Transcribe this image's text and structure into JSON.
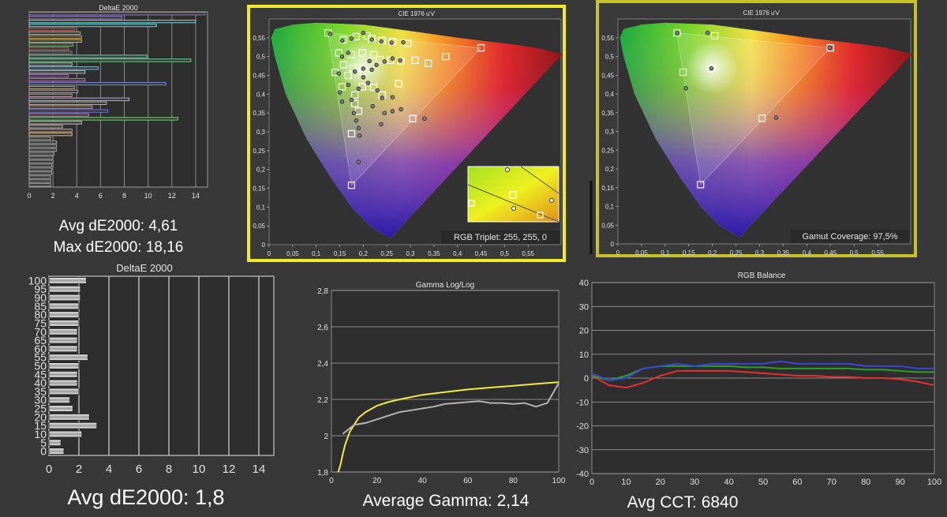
{
  "chart_data": [
    {
      "id": "deltae-top",
      "type": "bar",
      "orientation": "horizontal",
      "title": "DeltaE 2000",
      "xlim": [
        0,
        15
      ],
      "x_ticks": [
        "0",
        "2",
        "4",
        "6",
        "8",
        "10",
        "12",
        "14"
      ],
      "values": [
        14.8,
        7.8,
        14.0,
        10.7,
        3.8,
        4.3,
        4.4,
        4.4,
        3.7,
        3.3,
        3.6,
        9.9,
        13.6,
        3.6,
        5.8,
        4.7,
        3.3,
        4.7,
        11.5,
        3.8,
        4.1,
        3.6,
        8.4,
        6.5,
        5.3,
        6.6,
        5.0,
        12.5,
        4.4,
        2.8,
        3.6,
        3.6,
        1.8,
        2.3,
        2.3,
        2.3,
        2.1,
        2.0,
        2.0,
        1.9,
        1.9,
        1.9,
        1.8,
        1.8,
        1.8
      ],
      "colors": [
        "#9a7fc8",
        "#9a7fc8",
        "#7ae8e8",
        "#7fe0e0",
        "#d06060",
        "#b8b890",
        "#d0a050",
        "#d0d070",
        "#80c070",
        "#c07070",
        "#8a8a8a",
        "#80e0c0",
        "#70e0a0",
        "#c8c8c8",
        "#88c8e0",
        "#c8c8c8",
        "#a878c8",
        "#c878c8",
        "#7890e0",
        "#c8b080",
        "#a8a8a8",
        "#c8a0a0",
        "#b8b8e8",
        "#c0c0c0",
        "#e0a080",
        "#7070e0",
        "#e080c0",
        "#80e080",
        "#d0d0d0",
        "#d0b0b0",
        "#d8a8a8",
        "#e0c890",
        "#a8a8a8",
        "#a8a8a8",
        "#a8a8a8",
        "#a8a8a8",
        "#a8a8a8",
        "#a8a8a8",
        "#a8a8a8",
        "#a8a8a8",
        "#a8a8a8",
        "#a8a8a8",
        "#a8a8a8",
        "#a8a8a8",
        "#a8a8a8"
      ],
      "caption_avg": "Avg dE2000: 4,61",
      "caption_max": "Max dE2000: 18,16"
    },
    {
      "id": "cie-1",
      "type": "scatter",
      "title": "CIE 1976 u'v'",
      "xlim": [
        0,
        0.62
      ],
      "ylim": [
        0,
        0.6
      ],
      "x_ticks": [
        "0",
        "0,05",
        "0,1",
        "0,15",
        "0,2",
        "0,25",
        "0,3",
        "0,35",
        "0,4",
        "0,45",
        "0,5",
        "0,55"
      ],
      "y_ticks": [
        "0",
        "0,05",
        "0,1",
        "0,15",
        "0,2",
        "0,25",
        "0,3",
        "0,35",
        "0,4",
        "0,45",
        "0,5",
        "0,55"
      ],
      "gamut_triangle": [
        [
          0.45,
          0.523
        ],
        [
          0.125,
          0.563
        ],
        [
          0.175,
          0.158
        ]
      ],
      "targets": [
        [
          0.125,
          0.563
        ],
        [
          0.158,
          0.545
        ],
        [
          0.185,
          0.553
        ],
        [
          0.208,
          0.555
        ],
        [
          0.218,
          0.548
        ],
        [
          0.24,
          0.543
        ],
        [
          0.262,
          0.54
        ],
        [
          0.295,
          0.535
        ],
        [
          0.148,
          0.51
        ],
        [
          0.175,
          0.505
        ],
        [
          0.198,
          0.51
        ],
        [
          0.222,
          0.505
        ],
        [
          0.235,
          0.492
        ],
        [
          0.258,
          0.49
        ],
        [
          0.28,
          0.488
        ],
        [
          0.31,
          0.49
        ],
        [
          0.338,
          0.482
        ],
        [
          0.375,
          0.5
        ],
        [
          0.45,
          0.523
        ],
        [
          0.158,
          0.478
        ],
        [
          0.178,
          0.468
        ],
        [
          0.198,
          0.47
        ],
        [
          0.14,
          0.458
        ],
        [
          0.168,
          0.45
        ],
        [
          0.155,
          0.42
        ],
        [
          0.198,
          0.42
        ],
        [
          0.182,
          0.398
        ],
        [
          0.222,
          0.418
        ],
        [
          0.24,
          0.398
        ],
        [
          0.275,
          0.428
        ],
        [
          0.182,
          0.375
        ],
        [
          0.19,
          0.355
        ],
        [
          0.175,
          0.295
        ],
        [
          0.305,
          0.335
        ],
        [
          0.175,
          0.158
        ]
      ],
      "measured": [
        [
          0.13,
          0.56
        ],
        [
          0.155,
          0.542
        ],
        [
          0.175,
          0.548
        ],
        [
          0.2,
          0.563
        ],
        [
          0.218,
          0.545
        ],
        [
          0.238,
          0.54
        ],
        [
          0.26,
          0.537
        ],
        [
          0.285,
          0.538
        ],
        [
          0.155,
          0.5
        ],
        [
          0.168,
          0.51
        ],
        [
          0.2,
          0.468
        ],
        [
          0.213,
          0.488
        ],
        [
          0.228,
          0.478
        ],
        [
          0.245,
          0.487
        ],
        [
          0.262,
          0.495
        ],
        [
          0.278,
          0.49
        ],
        [
          0.148,
          0.455
        ],
        [
          0.182,
          0.46
        ],
        [
          0.2,
          0.445
        ],
        [
          0.168,
          0.425
        ],
        [
          0.21,
          0.43
        ],
        [
          0.15,
          0.405
        ],
        [
          0.19,
          0.415
        ],
        [
          0.23,
          0.41
        ],
        [
          0.24,
          0.39
        ],
        [
          0.262,
          0.392
        ],
        [
          0.22,
          0.368
        ],
        [
          0.245,
          0.35
        ],
        [
          0.262,
          0.355
        ],
        [
          0.28,
          0.36
        ],
        [
          0.155,
          0.38
        ],
        [
          0.18,
          0.35
        ],
        [
          0.185,
          0.33
        ],
        [
          0.19,
          0.31
        ],
        [
          0.238,
          0.32
        ],
        [
          0.192,
          0.29
        ],
        [
          0.19,
          0.22
        ],
        [
          0.33,
          0.335
        ],
        [
          0.218,
          0.465
        ],
        [
          0.175,
          0.385
        ]
      ],
      "inset_label": "RGB Triplet: 255, 255, 0",
      "frame_color": "#f0ea2a"
    },
    {
      "id": "cie-2",
      "type": "scatter",
      "title": "CIE 1976 u'v'",
      "xlim": [
        0,
        0.62
      ],
      "ylim": [
        0,
        0.6
      ],
      "x_ticks": [
        "0",
        "0,05",
        "0,1",
        "0,15",
        "0,2",
        "0,25",
        "0,3",
        "0,35",
        "0,4",
        "0,45",
        "0,5",
        "0,55"
      ],
      "y_ticks": [
        "0",
        "0,05",
        "0,1",
        "0,15",
        "0,2",
        "0,25",
        "0,3",
        "0,35",
        "0,4",
        "0,45",
        "0,5",
        "0,55"
      ],
      "gamut_triangle": [
        [
          0.45,
          0.523
        ],
        [
          0.125,
          0.563
        ],
        [
          0.175,
          0.158
        ]
      ],
      "targets": [
        [
          0.45,
          0.523
        ],
        [
          0.125,
          0.563
        ],
        [
          0.175,
          0.158
        ],
        [
          0.205,
          0.555
        ],
        [
          0.138,
          0.458
        ],
        [
          0.305,
          0.335
        ],
        [
          0.198,
          0.468
        ]
      ],
      "measured": [
        [
          0.448,
          0.523
        ],
        [
          0.126,
          0.562
        ],
        [
          0.19,
          0.563
        ],
        [
          0.144,
          0.415
        ],
        [
          0.335,
          0.337
        ],
        [
          0.198,
          0.468
        ]
      ],
      "coverage_label": "Gamut Coverage:  97,5%",
      "frame_color": "#c8c228"
    },
    {
      "id": "deltae-bottom",
      "type": "bar",
      "orientation": "horizontal",
      "title": "DeltaE 2000",
      "xlim": [
        0,
        15
      ],
      "x_ticks": [
        "0",
        "2",
        "4",
        "6",
        "8",
        "10",
        "12",
        "14"
      ],
      "categories": [
        "100",
        "95",
        "90",
        "85",
        "80",
        "75",
        "70",
        "65",
        "60",
        "55",
        "50",
        "45",
        "40",
        "35",
        "30",
        "25",
        "20",
        "15",
        "10",
        "5",
        "0"
      ],
      "y_tick_labels": [
        "100",
        "95",
        "90",
        "85",
        "80",
        "75",
        "70",
        "65",
        "60",
        "55",
        "50",
        "45",
        "40",
        "35",
        "30",
        "25",
        "20",
        "15",
        "10",
        "5",
        "0"
      ],
      "values": [
        2.5,
        2.1,
        2.1,
        2.0,
        2.0,
        2.0,
        1.9,
        1.9,
        1.9,
        2.6,
        2.0,
        1.9,
        1.9,
        2.0,
        1.4,
        1.6,
        2.7,
        3.2,
        2.2,
        0.8,
        1.0
      ],
      "caption": "Avg dE2000: 1,8"
    },
    {
      "id": "gamma",
      "type": "line",
      "title": "Gamma Log/Log",
      "xlim": [
        0,
        100
      ],
      "ylim": [
        1.8,
        2.8
      ],
      "x_ticks": [
        "0",
        "20",
        "40",
        "60",
        "80",
        "100"
      ],
      "y_ticks": [
        "1,8",
        "2",
        "2,2",
        "2,4",
        "2,6",
        "2,8"
      ],
      "series": [
        {
          "color": "#f2ea3c",
          "x": [
            3,
            4,
            5,
            6,
            8,
            10,
            12,
            15,
            20,
            25,
            30,
            40,
            50,
            60,
            70,
            80,
            90,
            100
          ],
          "y": [
            1.8,
            1.84,
            1.9,
            1.95,
            2.02,
            2.06,
            2.1,
            2.13,
            2.165,
            2.185,
            2.2,
            2.225,
            2.24,
            2.255,
            2.265,
            2.275,
            2.285,
            2.295
          ]
        },
        {
          "color": "#b4b4b4",
          "x": [
            5,
            10,
            15,
            20,
            25,
            30,
            35,
            40,
            45,
            50,
            55,
            60,
            65,
            70,
            75,
            80,
            85,
            90,
            95,
            100
          ],
          "y": [
            2.01,
            2.06,
            2.07,
            2.09,
            2.11,
            2.13,
            2.14,
            2.15,
            2.16,
            2.175,
            2.18,
            2.185,
            2.19,
            2.18,
            2.18,
            2.175,
            2.18,
            2.16,
            2.18,
            2.29
          ]
        }
      ],
      "caption": "Average Gamma: 2,14"
    },
    {
      "id": "rgb-balance",
      "type": "line",
      "title": "RGB Balance",
      "xlim": [
        0,
        100
      ],
      "ylim": [
        -40,
        40
      ],
      "x_ticks": [
        "0",
        "10",
        "20",
        "30",
        "40",
        "50",
        "60",
        "70",
        "80",
        "90",
        "100"
      ],
      "y_ticks": [
        "-40",
        "-30",
        "-20",
        "-10",
        "0",
        "10",
        "20",
        "30",
        "40"
      ],
      "series": [
        {
          "color": "#e53030",
          "x": [
            0,
            5,
            10,
            15,
            20,
            25,
            30,
            35,
            40,
            45,
            50,
            55,
            60,
            65,
            70,
            75,
            80,
            85,
            90,
            95,
            100
          ],
          "y": [
            1,
            -3,
            -4,
            -2,
            1,
            3,
            3,
            3,
            3,
            2.5,
            2,
            1.5,
            1,
            1,
            0.5,
            0.5,
            0,
            0,
            -0.5,
            -1.5,
            -3
          ]
        },
        {
          "color": "#2aa02a",
          "x": [
            0,
            5,
            10,
            15,
            20,
            25,
            30,
            35,
            40,
            45,
            50,
            55,
            60,
            65,
            70,
            75,
            80,
            85,
            90,
            95,
            100
          ],
          "y": [
            1,
            -1,
            1,
            4,
            5,
            5,
            5,
            5,
            5,
            4.5,
            4.5,
            4,
            4,
            4,
            4,
            4,
            3.5,
            3.5,
            3,
            2.5,
            2.5
          ]
        },
        {
          "color": "#3b45d6",
          "x": [
            0,
            5,
            10,
            15,
            20,
            25,
            30,
            35,
            40,
            45,
            50,
            55,
            60,
            65,
            70,
            75,
            80,
            85,
            90,
            95,
            100
          ],
          "y": [
            2,
            -1,
            0,
            4,
            5,
            6,
            5,
            6,
            6,
            6,
            6,
            7,
            6,
            6,
            6,
            6,
            5,
            5,
            5,
            4,
            4
          ]
        }
      ],
      "caption": "Avg CCT: 6840"
    }
  ]
}
